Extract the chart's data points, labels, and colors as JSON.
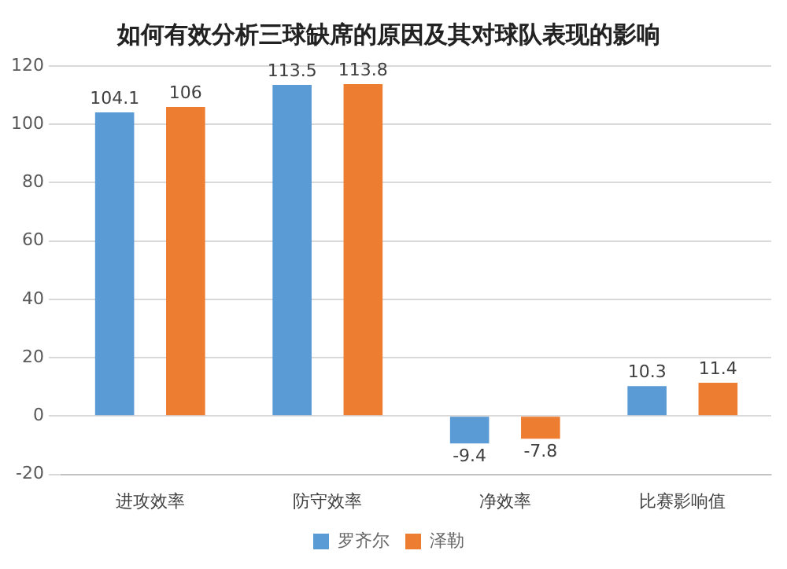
{
  "chart_data": {
    "type": "bar",
    "title": "如何有效分析三球缺席的原因及其对球队表现的影响",
    "categories": [
      "进攻效率",
      "防守效率",
      "净效率",
      "比赛影响值"
    ],
    "series": [
      {
        "name": "罗齐尔",
        "color": "#5b9bd5",
        "values": [
          104.1,
          113.5,
          -9.4,
          10.3
        ]
      },
      {
        "name": "泽勒",
        "color": "#ed7d31",
        "values": [
          106,
          113.8,
          -7.8,
          11.4
        ]
      }
    ],
    "ylim": [
      -20,
      120
    ],
    "yticks": [
      -20,
      0,
      20,
      40,
      60,
      80,
      100,
      120
    ],
    "grid": "y",
    "legend": "bottom",
    "data_labels": true
  }
}
